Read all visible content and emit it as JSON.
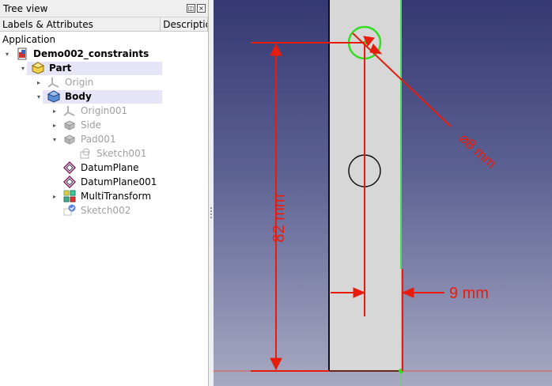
{
  "tree_panel": {
    "title": "Tree view",
    "float_btn": "◫",
    "close_btn": "×",
    "columns": [
      "Labels & Attributes",
      "Description"
    ],
    "root": "Application",
    "items": [
      {
        "label": "Demo002_constraints",
        "level": 1,
        "arrow": "▾",
        "style": "bold",
        "icon": "document-icon"
      },
      {
        "label": "Part",
        "level": 2,
        "arrow": "▾",
        "style": "bold",
        "icon": "part-icon",
        "highlight": true
      },
      {
        "label": "Origin",
        "level": 3,
        "arrow": "▸",
        "style": "grey",
        "icon": "origin-icon"
      },
      {
        "label": "Body",
        "level": 3,
        "arrow": "▾",
        "style": "bold",
        "icon": "body-icon",
        "highlight": true
      },
      {
        "label": "Origin001",
        "level": 4,
        "arrow": "▸",
        "style": "grey",
        "icon": "origin-icon"
      },
      {
        "label": "Side",
        "level": 4,
        "arrow": "▸",
        "style": "grey",
        "icon": "pad-icon"
      },
      {
        "label": "Pad001",
        "level": 4,
        "arrow": "▾",
        "style": "grey",
        "icon": "pad-icon"
      },
      {
        "label": "Sketch001",
        "level": 5,
        "arrow": "",
        "style": "grey",
        "icon": "sketch-icon"
      },
      {
        "label": "DatumPlane",
        "level": 4,
        "arrow": "",
        "style": "normal",
        "icon": "datum-plane-icon"
      },
      {
        "label": "DatumPlane001",
        "level": 4,
        "arrow": "",
        "style": "normal",
        "icon": "datum-plane-icon"
      },
      {
        "label": "MultiTransform",
        "level": 4,
        "arrow": "▸",
        "style": "normal",
        "icon": "multitransform-icon"
      },
      {
        "label": "Sketch002",
        "level": 4,
        "arrow": "",
        "style": "grey",
        "icon": "sketch-check-icon"
      }
    ]
  },
  "view3d": {
    "dimensions": {
      "diameter": "⌀8 mm",
      "height": "82 mm",
      "offset": "9 mm"
    },
    "colors": {
      "dimension": "#e81c0c",
      "selected": "#33dd22",
      "part_face": "#d7d7d7",
      "edge": "#111111"
    }
  }
}
